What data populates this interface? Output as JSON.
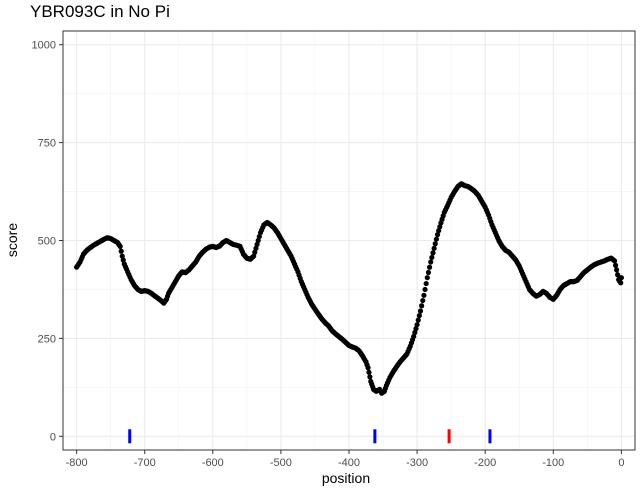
{
  "chart_data": {
    "type": "scatter",
    "title": "YBR093C in No Pi",
    "xlabel": "position",
    "ylabel": "score",
    "xlim": [
      -820,
      20
    ],
    "ylim": [
      -35,
      1035
    ],
    "x_ticks": [
      -800,
      -700,
      -600,
      -500,
      -400,
      -300,
      -200,
      -100,
      0
    ],
    "x_tick_labels": [
      "-800",
      "-700",
      "-600",
      "-500",
      "-400",
      "-300",
      "-200",
      "-100",
      "0"
    ],
    "y_ticks": [
      0,
      250,
      500,
      750,
      1000
    ],
    "y_tick_labels": [
      "0",
      "250",
      "500",
      "750",
      "1000"
    ],
    "grid": true,
    "theme": "bw",
    "point_color": "#000000",
    "profile": [
      [
        -800,
        432
      ],
      [
        -795,
        445
      ],
      [
        -790,
        465
      ],
      [
        -785,
        475
      ],
      [
        -780,
        482
      ],
      [
        -775,
        488
      ],
      [
        -770,
        493
      ],
      [
        -765,
        498
      ],
      [
        -760,
        503
      ],
      [
        -755,
        507
      ],
      [
        -750,
        505
      ],
      [
        -745,
        500
      ],
      [
        -740,
        495
      ],
      [
        -736,
        485
      ],
      [
        -733,
        460
      ],
      [
        -730,
        440
      ],
      [
        -725,
        420
      ],
      [
        -720,
        400
      ],
      [
        -715,
        385
      ],
      [
        -710,
        375
      ],
      [
        -705,
        370
      ],
      [
        -700,
        372
      ],
      [
        -695,
        370
      ],
      [
        -690,
        365
      ],
      [
        -685,
        358
      ],
      [
        -680,
        352
      ],
      [
        -675,
        345
      ],
      [
        -672,
        340
      ],
      [
        -668,
        350
      ],
      [
        -665,
        365
      ],
      [
        -660,
        380
      ],
      [
        -655,
        395
      ],
      [
        -650,
        410
      ],
      [
        -645,
        420
      ],
      [
        -640,
        418
      ],
      [
        -635,
        425
      ],
      [
        -630,
        435
      ],
      [
        -625,
        445
      ],
      [
        -620,
        460
      ],
      [
        -615,
        470
      ],
      [
        -610,
        478
      ],
      [
        -605,
        483
      ],
      [
        -600,
        485
      ],
      [
        -595,
        482
      ],
      [
        -590,
        486
      ],
      [
        -585,
        495
      ],
      [
        -580,
        500
      ],
      [
        -575,
        495
      ],
      [
        -570,
        490
      ],
      [
        -565,
        488
      ],
      [
        -560,
        485
      ],
      [
        -555,
        465
      ],
      [
        -550,
        455
      ],
      [
        -545,
        452
      ],
      [
        -540,
        460
      ],
      [
        -535,
        490
      ],
      [
        -530,
        520
      ],
      [
        -525,
        540
      ],
      [
        -520,
        546
      ],
      [
        -515,
        540
      ],
      [
        -510,
        532
      ],
      [
        -505,
        520
      ],
      [
        -500,
        505
      ],
      [
        -495,
        490
      ],
      [
        -490,
        475
      ],
      [
        -485,
        460
      ],
      [
        -480,
        440
      ],
      [
        -475,
        420
      ],
      [
        -470,
        395
      ],
      [
        -465,
        375
      ],
      [
        -460,
        355
      ],
      [
        -455,
        338
      ],
      [
        -450,
        325
      ],
      [
        -445,
        312
      ],
      [
        -440,
        300
      ],
      [
        -435,
        290
      ],
      [
        -430,
        282
      ],
      [
        -425,
        270
      ],
      [
        -420,
        262
      ],
      [
        -415,
        255
      ],
      [
        -410,
        248
      ],
      [
        -405,
        240
      ],
      [
        -400,
        232
      ],
      [
        -395,
        228
      ],
      [
        -390,
        225
      ],
      [
        -385,
        218
      ],
      [
        -380,
        205
      ],
      [
        -375,
        190
      ],
      [
        -372,
        175
      ],
      [
        -368,
        140
      ],
      [
        -364,
        120
      ],
      [
        -360,
        115
      ],
      [
        -355,
        120
      ],
      [
        -352,
        110
      ],
      [
        -348,
        115
      ],
      [
        -345,
        130
      ],
      [
        -340,
        150
      ],
      [
        -335,
        165
      ],
      [
        -330,
        178
      ],
      [
        -325,
        190
      ],
      [
        -320,
        200
      ],
      [
        -315,
        210
      ],
      [
        -310,
        230
      ],
      [
        -305,
        255
      ],
      [
        -300,
        285
      ],
      [
        -295,
        320
      ],
      [
        -290,
        360
      ],
      [
        -285,
        405
      ],
      [
        -280,
        445
      ],
      [
        -275,
        480
      ],
      [
        -270,
        515
      ],
      [
        -265,
        545
      ],
      [
        -260,
        572
      ],
      [
        -255,
        590
      ],
      [
        -250,
        610
      ],
      [
        -245,
        625
      ],
      [
        -240,
        638
      ],
      [
        -235,
        645
      ],
      [
        -230,
        640
      ],
      [
        -225,
        638
      ],
      [
        -220,
        632
      ],
      [
        -215,
        625
      ],
      [
        -210,
        615
      ],
      [
        -205,
        600
      ],
      [
        -200,
        585
      ],
      [
        -195,
        565
      ],
      [
        -190,
        540
      ],
      [
        -185,
        520
      ],
      [
        -180,
        500
      ],
      [
        -175,
        485
      ],
      [
        -170,
        475
      ],
      [
        -165,
        470
      ],
      [
        -160,
        460
      ],
      [
        -155,
        450
      ],
      [
        -150,
        435
      ],
      [
        -145,
        415
      ],
      [
        -140,
        395
      ],
      [
        -135,
        375
      ],
      [
        -130,
        365
      ],
      [
        -125,
        358
      ],
      [
        -120,
        362
      ],
      [
        -115,
        370
      ],
      [
        -110,
        365
      ],
      [
        -105,
        355
      ],
      [
        -100,
        350
      ],
      [
        -95,
        360
      ],
      [
        -90,
        375
      ],
      [
        -85,
        385
      ],
      [
        -80,
        390
      ],
      [
        -75,
        395
      ],
      [
        -70,
        395
      ],
      [
        -65,
        398
      ],
      [
        -60,
        408
      ],
      [
        -55,
        418
      ],
      [
        -50,
        425
      ],
      [
        -45,
        432
      ],
      [
        -40,
        438
      ],
      [
        -35,
        442
      ],
      [
        -30,
        445
      ],
      [
        -25,
        448
      ],
      [
        -20,
        452
      ],
      [
        -15,
        455
      ],
      [
        -10,
        448
      ],
      [
        -7,
        425
      ],
      [
        -4,
        400
      ],
      [
        -1,
        392
      ],
      [
        0,
        405
      ]
    ],
    "markers": [
      {
        "x": -722,
        "y": 0,
        "color": "#0000ff"
      },
      {
        "x": -362,
        "y": 0,
        "color": "#0000ff"
      },
      {
        "x": -253,
        "y": 0,
        "color": "#ff0000"
      },
      {
        "x": -193,
        "y": 0,
        "color": "#0000ff"
      }
    ]
  }
}
